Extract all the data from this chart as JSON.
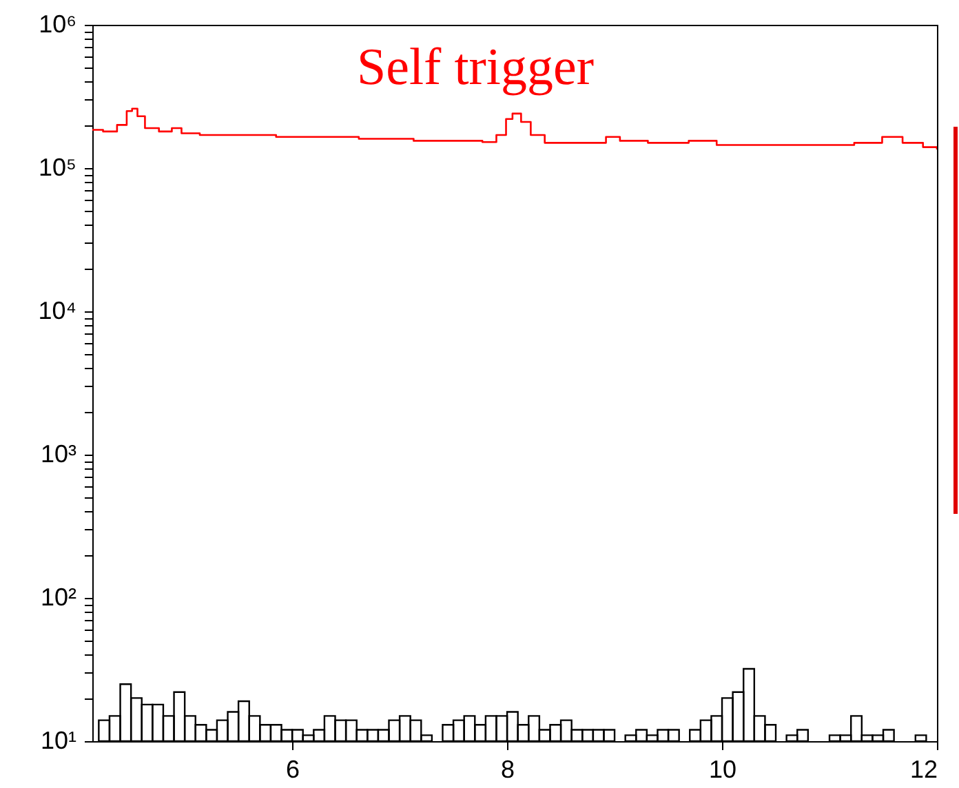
{
  "chart_data": {
    "type": "step",
    "xlim": [
      4.14,
      12
    ],
    "xticks": [
      6,
      8,
      10,
      12
    ],
    "ylim": [
      10,
      1000000
    ],
    "log": "y",
    "yticks": [
      {
        "value": 10,
        "label": "10¹"
      },
      {
        "value": 20,
        "label": null
      },
      {
        "value": 30,
        "label": null
      },
      {
        "value": 40,
        "label": null
      },
      {
        "value": 50,
        "label": null
      },
      {
        "value": 60,
        "label": null
      },
      {
        "value": 70,
        "label": null
      },
      {
        "value": 80,
        "label": null
      },
      {
        "value": 90,
        "label": null
      },
      {
        "value": 100,
        "label": "10²"
      },
      {
        "value": 200,
        "label": null
      },
      {
        "value": 300,
        "label": null
      },
      {
        "value": 400,
        "label": null
      },
      {
        "value": 500,
        "label": null
      },
      {
        "value": 600,
        "label": null
      },
      {
        "value": 700,
        "label": null
      },
      {
        "value": 800,
        "label": null
      },
      {
        "value": 900,
        "label": null
      },
      {
        "value": 1000,
        "label": "10³"
      },
      {
        "value": 2000,
        "label": null
      },
      {
        "value": 3000,
        "label": null
      },
      {
        "value": 4000,
        "label": null
      },
      {
        "value": 5000,
        "label": null
      },
      {
        "value": 6000,
        "label": null
      },
      {
        "value": 7000,
        "label": null
      },
      {
        "value": 8000,
        "label": null
      },
      {
        "value": 9000,
        "label": null
      },
      {
        "value": 10000,
        "label": "10⁴"
      },
      {
        "value": 20000,
        "label": null
      },
      {
        "value": 30000,
        "label": null
      },
      {
        "value": 40000,
        "label": null
      },
      {
        "value": 50000,
        "label": null
      },
      {
        "value": 60000,
        "label": null
      },
      {
        "value": 70000,
        "label": null
      },
      {
        "value": 80000,
        "label": null
      },
      {
        "value": 90000,
        "label": null
      },
      {
        "value": 100000,
        "label": "10⁵"
      },
      {
        "value": 200000,
        "label": null
      },
      {
        "value": 300000,
        "label": null
      },
      {
        "value": 400000,
        "label": null
      },
      {
        "value": 500000,
        "label": null
      },
      {
        "value": 600000,
        "label": null
      },
      {
        "value": 700000,
        "label": null
      },
      {
        "value": 800000,
        "label": null
      },
      {
        "value": 900000,
        "label": null
      },
      {
        "value": 1000000,
        "label": "10⁶"
      }
    ],
    "grid": false,
    "series": [
      {
        "name": "Self trigger",
        "color": "#ff0000",
        "x": [
          4.14,
          4.24,
          4.37,
          4.46,
          4.51,
          4.56,
          4.63,
          4.76,
          4.88,
          4.97,
          5.14,
          5.85,
          6.62,
          7.13,
          7.77,
          7.9,
          7.99,
          8.05,
          8.13,
          8.22,
          8.35,
          8.67,
          8.92,
          9.05,
          9.31,
          9.69,
          9.95,
          10.97,
          11.23,
          11.49,
          11.68,
          11.87,
          12
        ],
        "values": [
          185000,
          180000,
          200000,
          250000,
          260000,
          230000,
          190000,
          180000,
          190000,
          175000,
          170000,
          165000,
          160000,
          155000,
          152000,
          170000,
          220000,
          240000,
          210000,
          170000,
          150000,
          150000,
          165000,
          155000,
          150000,
          155000,
          145000,
          145000,
          150000,
          165000,
          150000,
          140000,
          135000
        ]
      },
      {
        "type": "histogram",
        "color": "#000000",
        "bins": [
          4.2,
          4.3,
          4.4,
          4.5,
          4.6,
          4.7,
          4.8,
          4.9,
          5.0,
          5.1,
          5.2,
          5.3,
          5.4,
          5.5,
          5.6,
          5.7,
          5.8,
          5.9,
          6.0,
          6.1,
          6.2,
          6.3,
          6.4,
          6.5,
          6.6,
          6.7,
          6.8,
          6.9,
          7.0,
          7.1,
          7.2,
          7.3,
          7.4,
          7.5,
          7.6,
          7.7,
          7.8,
          7.9,
          8.0,
          8.1,
          8.2,
          8.3,
          8.4,
          8.5,
          8.6,
          8.7,
          8.8,
          8.9,
          9.0,
          9.1,
          9.2,
          9.3,
          9.4,
          9.5,
          9.6,
          9.7,
          9.8,
          9.9,
          10.0,
          10.1,
          10.2,
          10.3,
          10.4,
          10.5,
          10.6,
          10.7,
          10.8,
          11.0,
          11.1,
          11.2,
          11.3,
          11.4,
          11.5,
          11.6,
          11.8,
          11.9
        ],
        "values": [
          14,
          15,
          25,
          20,
          18,
          18,
          15,
          22,
          15,
          13,
          12,
          14,
          16,
          19,
          15,
          13,
          13,
          12,
          12,
          11,
          12,
          15,
          14,
          14,
          12,
          12,
          12,
          14,
          15,
          14,
          11,
          null,
          13,
          14,
          15,
          13,
          15,
          15,
          16,
          13,
          15,
          12,
          13,
          14,
          12,
          12,
          12,
          12,
          null,
          11,
          12,
          11,
          12,
          12,
          null,
          12,
          14,
          15,
          20,
          22,
          32,
          15,
          13,
          null,
          11,
          12,
          null,
          11,
          11,
          15,
          11,
          11,
          12,
          null,
          11
        ]
      }
    ]
  }
}
